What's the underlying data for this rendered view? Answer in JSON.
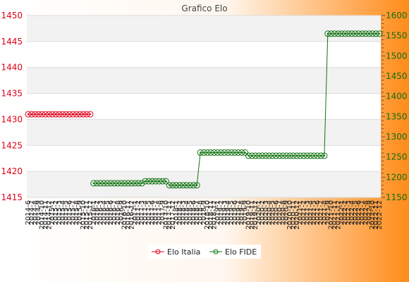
{
  "chart_data": {
    "type": "line",
    "title": "Grafico Elo",
    "colors": {
      "background_start": "#ffffff",
      "background_end": "#ff8c1a",
      "band": "#f2f2f2",
      "grid": "#dcdcdc",
      "series_italia": "#e0001b",
      "series_fide": "#127312",
      "left_axis_text": "#e0001b",
      "right_axis_text": "#126e12"
    },
    "left_axis": {
      "min": 1415,
      "max": 1450,
      "ticks": [
        1415,
        1420,
        1425,
        1430,
        1435,
        1440,
        1445,
        1450
      ]
    },
    "right_axis": {
      "min": 1150,
      "max": 1600,
      "ticks": [
        1150,
        1200,
        1250,
        1300,
        1350,
        1400,
        1450,
        1500,
        1550,
        1600
      ]
    },
    "x_labels": [
      "2014-6",
      "2014-7",
      "2014-8",
      "2014-9",
      "2014-10",
      "2014-11",
      "2014-12",
      "2015-1",
      "2015-2",
      "2015-3",
      "2015-4",
      "2015-5",
      "2015-6",
      "2015-7",
      "2015-8",
      "2015-9",
      "2015-10",
      "2015-11",
      "2015-12",
      "2016-1",
      "2016-2",
      "2016-3",
      "2016-4",
      "2016-5",
      "2016-6",
      "2016-7",
      "2016-8",
      "2016-9",
      "2016-10",
      "2016-11",
      "2016-12",
      "2017-1",
      "2017-2",
      "2017-3",
      "2017-4",
      "2017-5",
      "2017-6",
      "2017-7",
      "2017-8",
      "2017-9",
      "2017-10",
      "2017-11",
      "2017-12",
      "2018-1",
      "2018-2",
      "2018-3",
      "2018-4",
      "2018-5",
      "2018-6",
      "2018-7",
      "2018-8",
      "2018-9",
      "2018-10",
      "2018-11",
      "2018-12",
      "2019-1",
      "2019-2",
      "2019-3",
      "2019-4",
      "2019-5",
      "2019-6",
      "2019-7",
      "2019-8",
      "2019-9",
      "2019-10",
      "2019-11",
      "2019-12",
      "2020-1",
      "2020-2",
      "2020-3",
      "2020-4",
      "2020-5",
      "2020-6",
      "2020-7",
      "2020-8",
      "2020-9",
      "2020-10",
      "2020-11",
      "2020-12",
      "2021-1",
      "2021-2",
      "2021-3",
      "2021-4",
      "2021-5",
      "2021-6",
      "2021-7",
      "2021-8",
      "2021-9",
      "2021-10",
      "2021-11",
      "2021-12",
      "2022-1",
      "2022-2",
      "2022-3",
      "2022-4",
      "2022-5",
      "2022-6",
      "2022-7",
      "2022-8",
      "2022-9",
      "2022-10",
      "2022-11",
      "2022-12"
    ],
    "series": [
      {
        "name": "Elo Italia",
        "axis": "left",
        "segments": [
          {
            "from": 0,
            "to": 18,
            "value": 1431
          }
        ]
      },
      {
        "name": "Elo FIDE",
        "axis": "right",
        "segments": [
          {
            "from": 19,
            "to": 33,
            "value": 1185
          },
          {
            "from": 34,
            "to": 40,
            "value": 1190
          },
          {
            "from": 41,
            "to": 49,
            "value": 1180
          },
          {
            "from": 50,
            "to": 63,
            "value": 1261
          },
          {
            "from": 64,
            "to": 86,
            "value": 1253
          },
          {
            "from": 87,
            "to": 102,
            "value": 1555
          }
        ]
      }
    ]
  }
}
